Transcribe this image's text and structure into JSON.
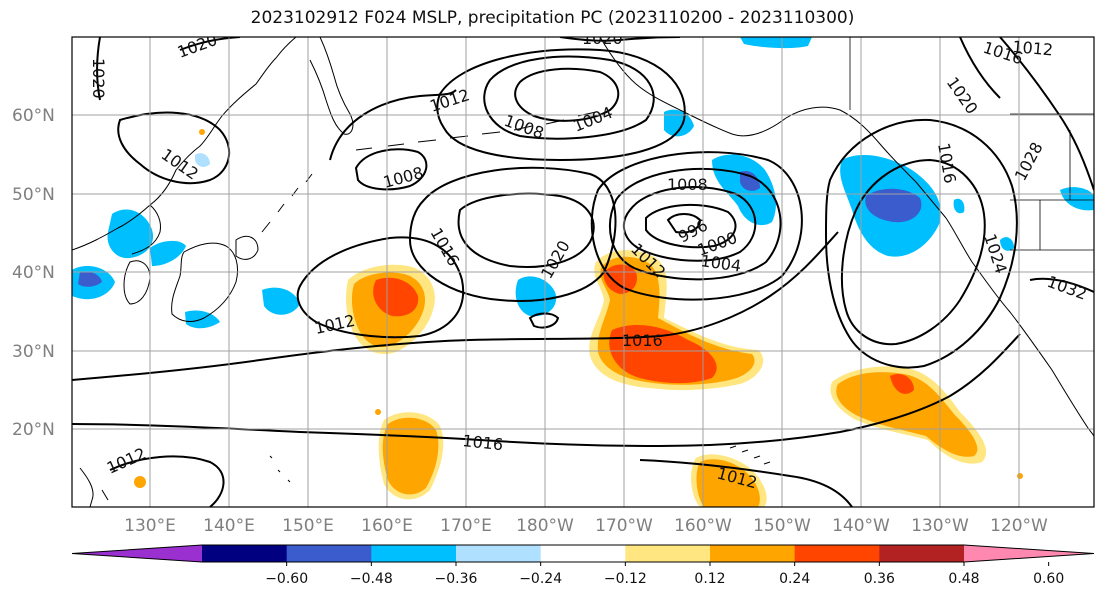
{
  "title": "2023102912 F024 MSLP, precipitation PC (2023110200 - 2023110300)",
  "latitude_labels": [
    "60°N",
    "50°N",
    "40°N",
    "30°N",
    "20°N"
  ],
  "longitude_labels": [
    "130°E",
    "140°E",
    "150°E",
    "160°E",
    "170°E",
    "180°W",
    "170°W",
    "160°W",
    "150°W",
    "140°W",
    "130°W",
    "120°W"
  ],
  "isobar_labels": [
    "1020",
    "1020",
    "1020",
    "1016",
    "1012",
    "1012",
    "1008",
    "1004",
    "1008",
    "1012",
    "1016",
    "1020",
    "1012",
    "1008",
    "996",
    "1000",
    "1004",
    "1016",
    "1012",
    "1016",
    "1012",
    "1028",
    "1020",
    "1032",
    "1016",
    "1012",
    "1024"
  ],
  "colorbar": {
    "colors": [
      "#9b30d0",
      "#000080",
      "#3a5ccc",
      "#00bfff",
      "#b0e0ff",
      "#ffffff",
      "#ffe680",
      "#ffa500",
      "#ff4500",
      "#b22222",
      "#ff88b0"
    ],
    "tick_labels": [
      "−0.60",
      "−0.48",
      "−0.36",
      "−0.24",
      "−0.12",
      "0.12",
      "0.24",
      "0.36",
      "0.48",
      "0.60"
    ]
  }
}
